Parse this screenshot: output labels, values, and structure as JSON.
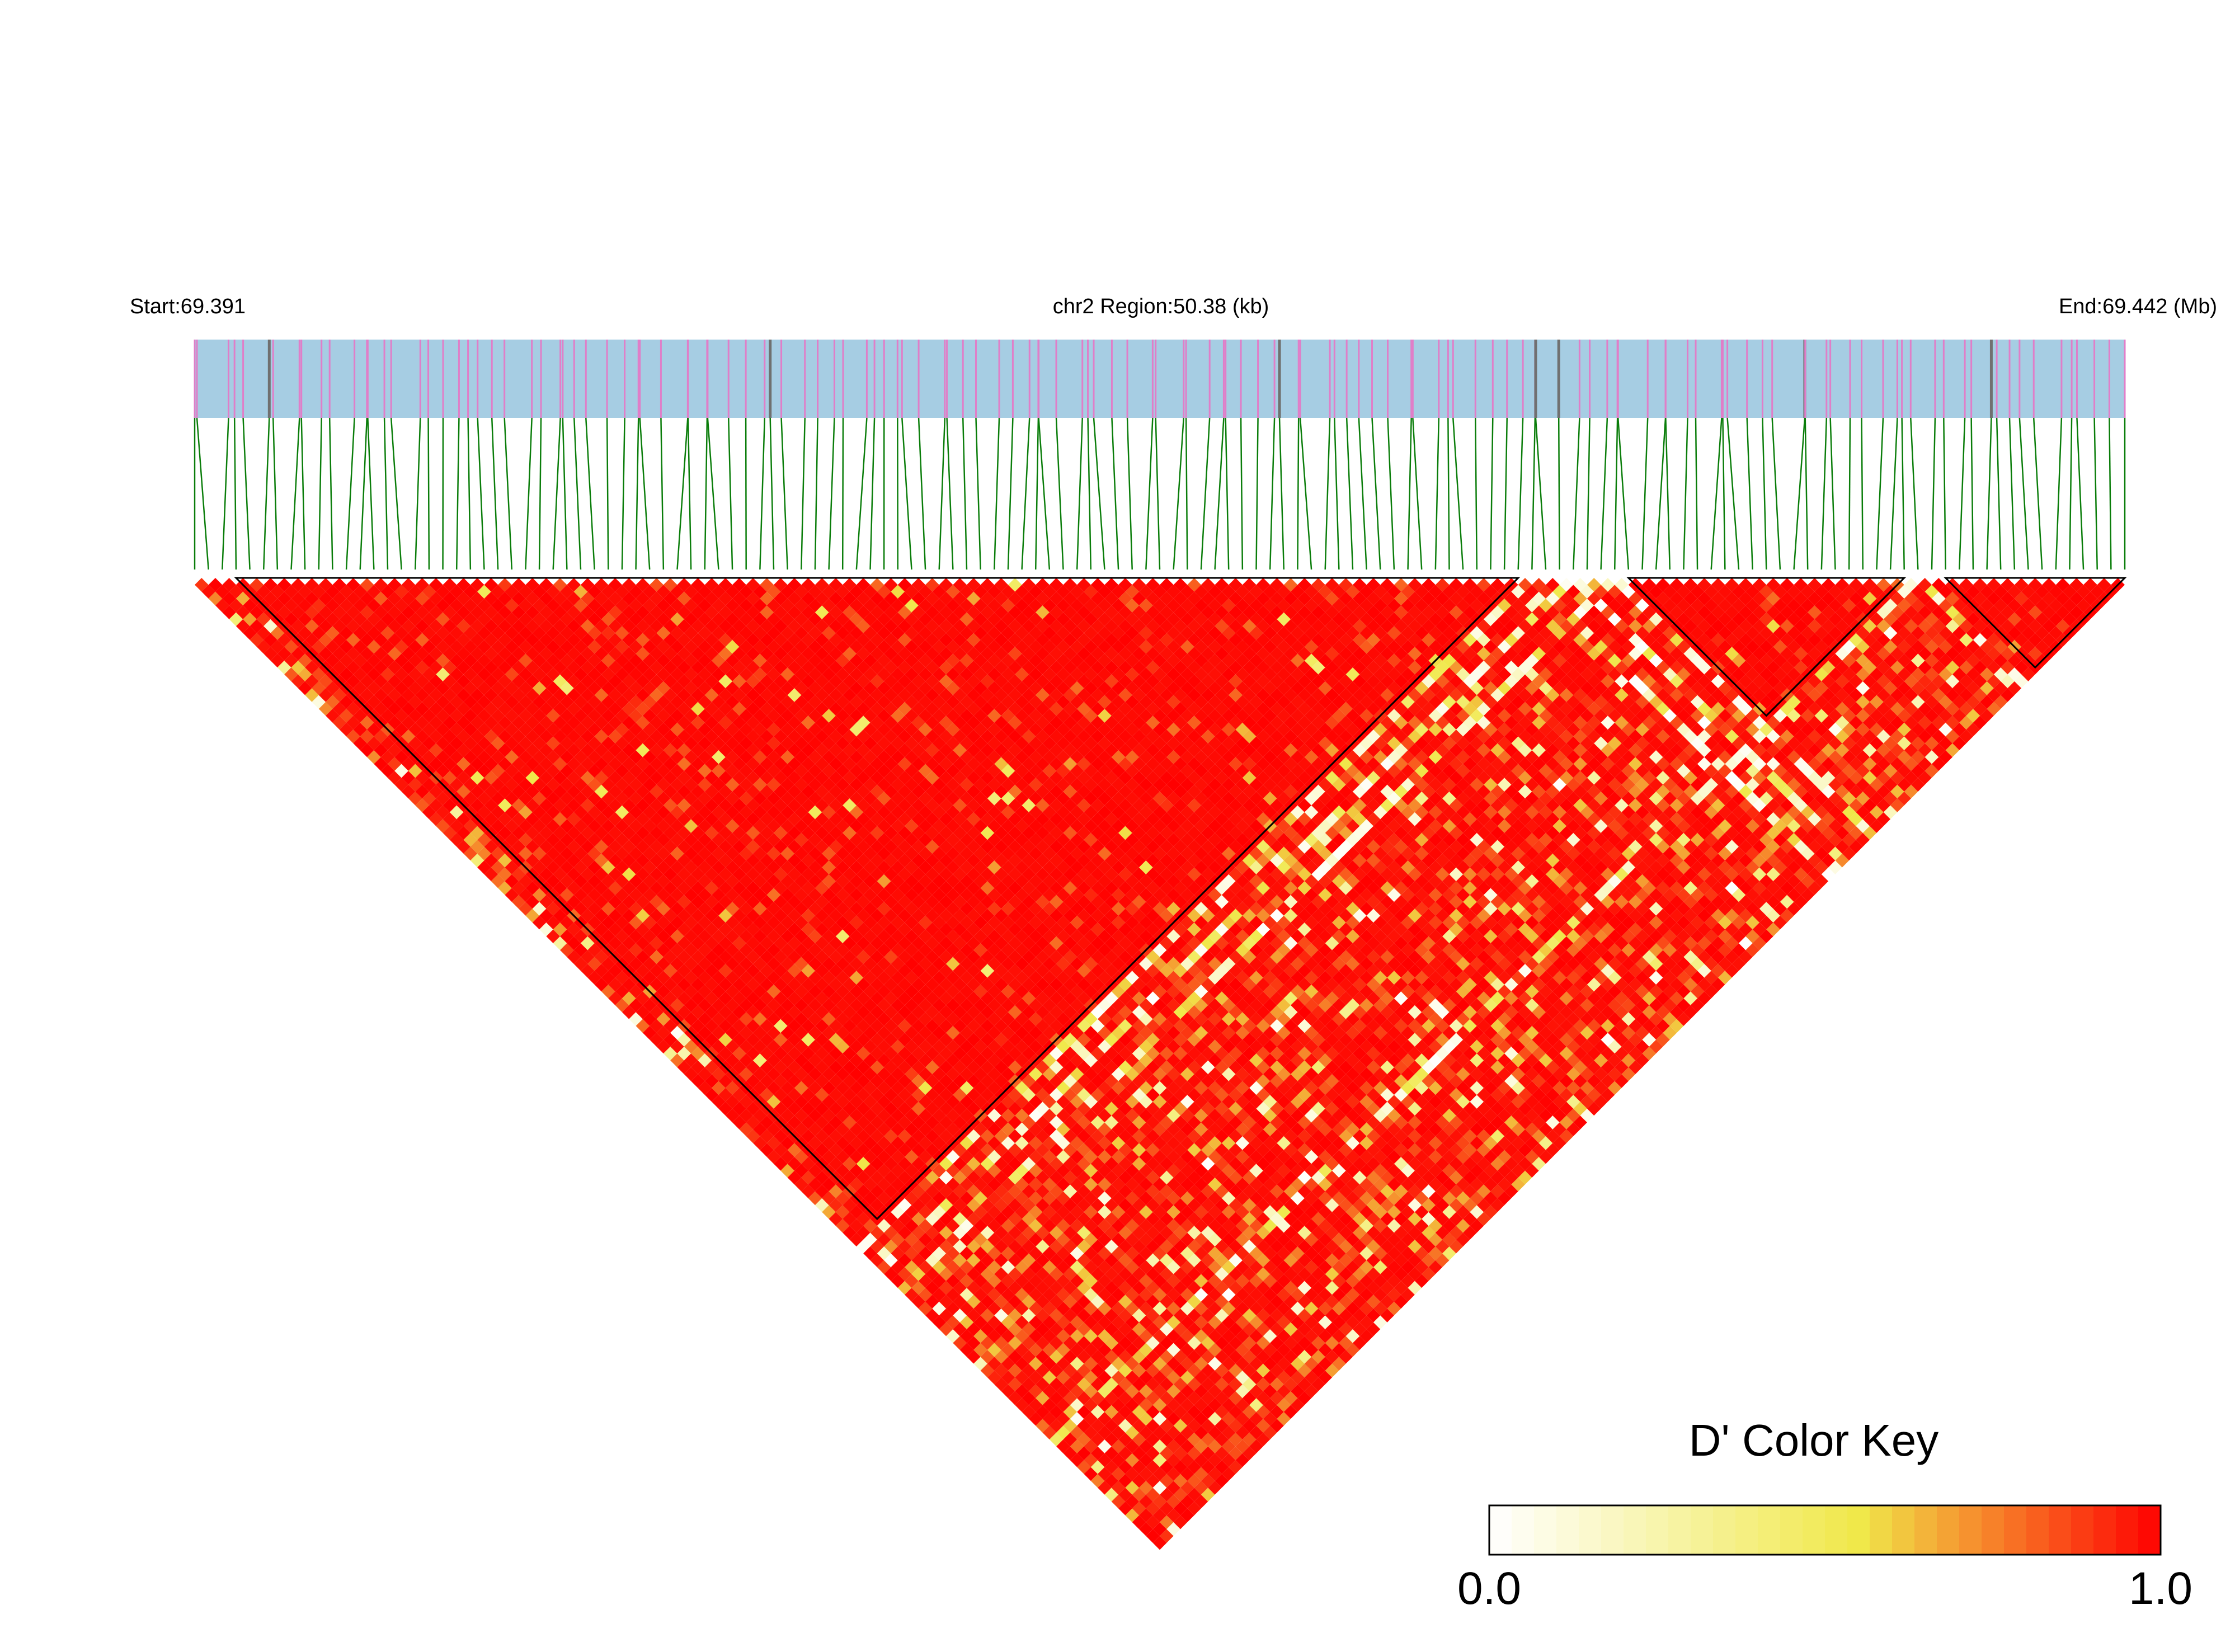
{
  "chart_data": {
    "type": "heatmap",
    "title": "",
    "region": {
      "start_label": "Start:69.391",
      "center_label": "chr2 Region:50.38 (kb)",
      "end_label": "End:69.442 (Mb)",
      "chromosome": "chr2",
      "start_mb": 69.391,
      "end_mb": 69.442,
      "length_kb": 50.38
    },
    "snp_count": 141,
    "measure": "D'",
    "haplotype_blocks": [
      {
        "first_snp": 3,
        "last_snp": 96
      },
      {
        "first_snp": 104,
        "last_snp": 124
      },
      {
        "first_snp": 127,
        "last_snp": 140
      }
    ],
    "color_key": {
      "title": "D' Color Key",
      "min_label": "0.0",
      "max_label": "1.0",
      "range": [
        0,
        1
      ],
      "low_color": "#ffffff",
      "mid_color": "#f0e84a",
      "high_color": "#ff0000"
    },
    "colors": {
      "track_fill": "#a6cde3",
      "snp_tick": "#e07ec8",
      "snp_tick_dark": "#707070",
      "connector": "#0a7d0a",
      "block_outline": "#000000"
    }
  }
}
